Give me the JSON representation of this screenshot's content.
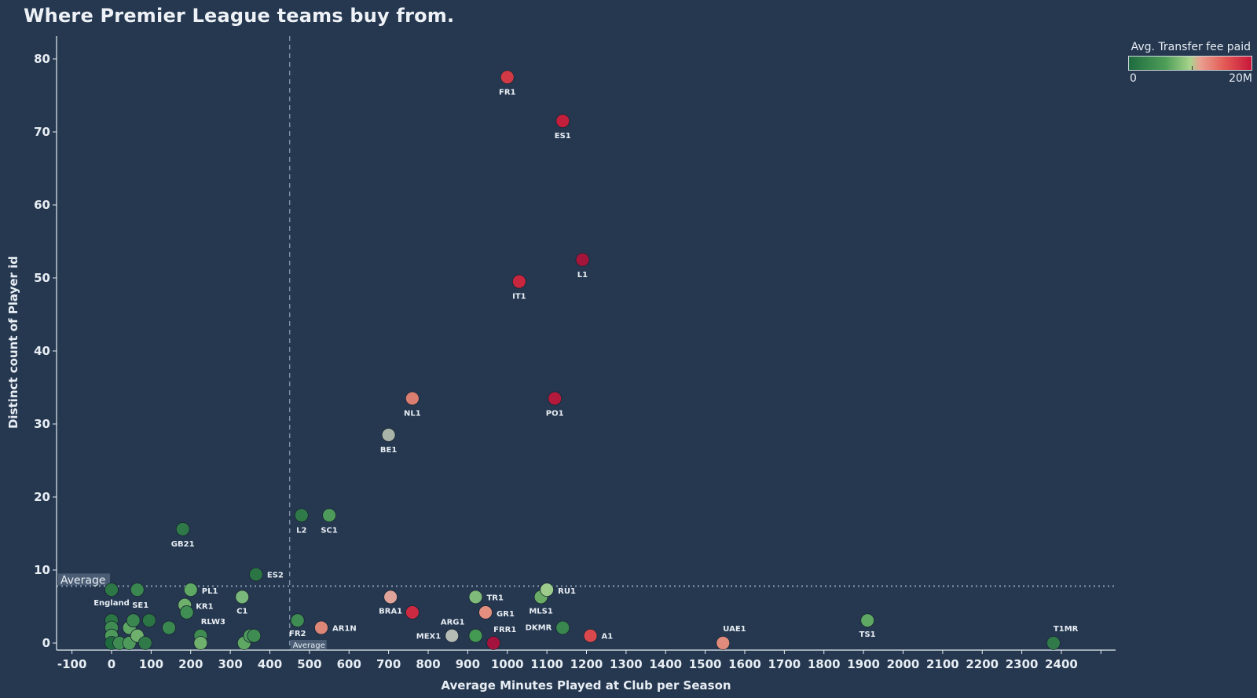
{
  "chart_data": {
    "type": "scatter",
    "title": "Where Premier League teams buy from.",
    "xlabel": "Average Minutes Played at Club per Season",
    "ylabel": "Distinct count of Player id",
    "xlim": [
      -150,
      2500
    ],
    "ylim": [
      -1,
      83
    ],
    "xticks": [
      -100,
      0,
      100,
      200,
      300,
      400,
      500,
      600,
      700,
      800,
      900,
      1000,
      1100,
      1200,
      1300,
      1400,
      1500,
      1600,
      1700,
      1800,
      1900,
      2000,
      2100,
      2200,
      2300,
      2400
    ],
    "yticks": [
      0,
      10,
      20,
      30,
      40,
      50,
      60,
      70,
      80
    ],
    "y_tick_labels": [
      "0",
      "10",
      "20",
      "30",
      "40",
      "50",
      "60",
      "70",
      "80"
    ],
    "average_x": 450,
    "average_y": 7.8,
    "average_label": "Average",
    "legend": {
      "title": "Avg. Transfer fee paid",
      "min_label": "0",
      "max_label": "20M",
      "min_color": "#1e6b3f",
      "mid_color": "#a8d48c",
      "max_color": "#c8163a",
      "placement": "top-right"
    },
    "points": [
      {
        "label": "FR1",
        "x": 1000,
        "y": 77.5,
        "color": "#d13a44"
      },
      {
        "label": "ES1",
        "x": 1140,
        "y": 71.5,
        "color": "#c21f3c"
      },
      {
        "label": "L1",
        "x": 1190,
        "y": 52.5,
        "color": "#a4153c"
      },
      {
        "label": "IT1",
        "x": 1030,
        "y": 49.5,
        "color": "#c8253e"
      },
      {
        "label": "NL1",
        "x": 760,
        "y": 33.5,
        "color": "#db7e72"
      },
      {
        "label": "PO1",
        "x": 1120,
        "y": 33.5,
        "color": "#b41a3c"
      },
      {
        "label": "BE1",
        "x": 700,
        "y": 28.5,
        "color": "#a9b3a8"
      },
      {
        "label": "L2",
        "x": 480,
        "y": 17.5,
        "color": "#2f7a48"
      },
      {
        "label": "SC1",
        "x": 550,
        "y": 17.5,
        "color": "#4d9a5a"
      },
      {
        "label": "GB21",
        "x": 180,
        "y": 15.6,
        "color": "#2f7848"
      },
      {
        "label": "ES2",
        "x": 365,
        "y": 9.4,
        "color": "#2b7545"
      },
      {
        "label": "England",
        "x": 0,
        "y": 7.3,
        "color": "#2d7646"
      },
      {
        "label": "SE1",
        "x": 65,
        "y": 7.3,
        "color": "#3a8850"
      },
      {
        "label": "PL1",
        "x": 200,
        "y": 7.3,
        "color": "#5ea864"
      },
      {
        "label": "KR1",
        "x": 185,
        "y": 5.2,
        "color": "#6eb06c"
      },
      {
        "label": "RLW3",
        "x": 190,
        "y": 4.2,
        "color": "#3f8e52"
      },
      {
        "label": "C1",
        "x": 330,
        "y": 6.3,
        "color": "#79b77a"
      },
      {
        "label": "FR2",
        "x": 470,
        "y": 3.1,
        "color": "#3e8c52"
      },
      {
        "label": "AR1N",
        "x": 530,
        "y": 2.1,
        "color": "#dc8778"
      },
      {
        "label": "BRA1",
        "x": 705,
        "y": 6.3,
        "color": "#dfa39a"
      },
      {
        "label": "",
        "x": 760,
        "y": 4.2,
        "color": "#cc2a40"
      },
      {
        "label": "TR1",
        "x": 920,
        "y": 6.3,
        "color": "#7fba7a"
      },
      {
        "label": "GR1",
        "x": 945,
        "y": 4.2,
        "color": "#e28f80"
      },
      {
        "label": "MEX1",
        "x": 860,
        "y": 1.0,
        "color": "#b5bcb5"
      },
      {
        "label": "ARG1",
        "x": 920,
        "y": 1.0,
        "color": "#449a52"
      },
      {
        "label": "FRR1",
        "x": 965,
        "y": 0,
        "color": "#a4133e"
      },
      {
        "label": "MLS1",
        "x": 1085,
        "y": 6.3,
        "color": "#6aac66"
      },
      {
        "label": "RU1",
        "x": 1100,
        "y": 7.3,
        "color": "#9ccb8c"
      },
      {
        "label": "DKMR",
        "x": 1140,
        "y": 2.1,
        "color": "#3a8850"
      },
      {
        "label": "A1",
        "x": 1210,
        "y": 1.0,
        "color": "#d8484c"
      },
      {
        "label": "UAE1",
        "x": 1545,
        "y": 0,
        "color": "#df8c7c"
      },
      {
        "label": "TS1",
        "x": 1910,
        "y": 3.1,
        "color": "#5ea864"
      },
      {
        "label": "T1MR",
        "x": 2380,
        "y": 0,
        "color": "#2f7a48"
      },
      {
        "label": "",
        "x": 0,
        "y": 3.1,
        "color": "#2b7545"
      },
      {
        "label": "",
        "x": 0,
        "y": 2.1,
        "color": "#3e8c52"
      },
      {
        "label": "",
        "x": 0,
        "y": 1.0,
        "color": "#4d9a5a"
      },
      {
        "label": "",
        "x": 0,
        "y": 0,
        "color": "#1e6b3f"
      },
      {
        "label": "",
        "x": 20,
        "y": 0,
        "color": "#3e8c52"
      },
      {
        "label": "",
        "x": 45,
        "y": 2.1,
        "color": "#5ea864"
      },
      {
        "label": "",
        "x": 55,
        "y": 3.1,
        "color": "#3a8850"
      },
      {
        "label": "",
        "x": 45,
        "y": 0,
        "color": "#4d9a5a"
      },
      {
        "label": "",
        "x": 65,
        "y": 1.0,
        "color": "#6eb06c"
      },
      {
        "label": "",
        "x": 85,
        "y": 0,
        "color": "#2f7a48"
      },
      {
        "label": "",
        "x": 95,
        "y": 3.1,
        "color": "#2b7545"
      },
      {
        "label": "",
        "x": 145,
        "y": 2.1,
        "color": "#3a8850"
      },
      {
        "label": "",
        "x": 225,
        "y": 1.0,
        "color": "#3e8c52"
      },
      {
        "label": "",
        "x": 225,
        "y": 0,
        "color": "#6eb06c"
      },
      {
        "label": "",
        "x": 335,
        "y": 0,
        "color": "#5ea864"
      },
      {
        "label": "",
        "x": 350,
        "y": 1.0,
        "color": "#4d9a5a"
      },
      {
        "label": "",
        "x": 360,
        "y": 1.0,
        "color": "#3e8c52"
      }
    ]
  }
}
